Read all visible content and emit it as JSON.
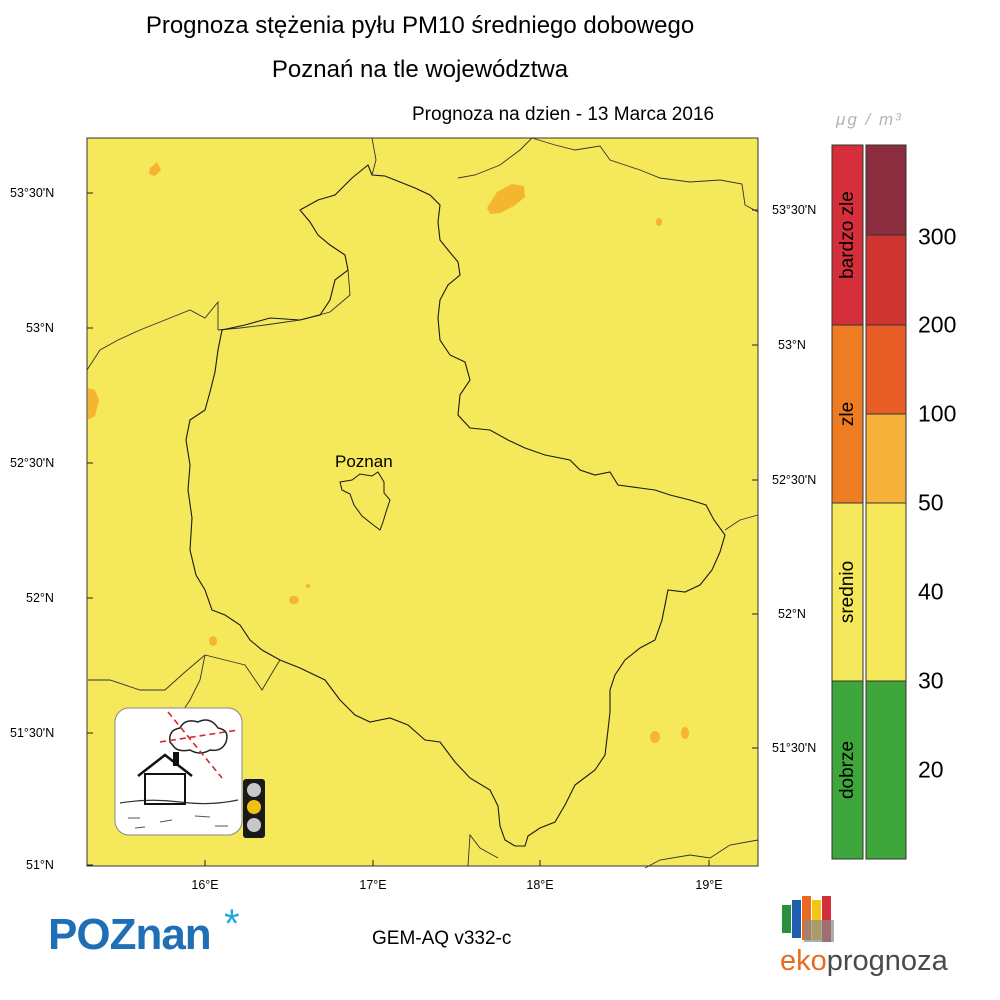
{
  "title_line1": "Prognoza stężenia pyłu PM10 średniego dobowego",
  "title_line2": "Poznań na tle województwa",
  "forecast_date": "Prognoza na dzien -  13 Marca 2016",
  "city_label": "Poznan",
  "lat_labels_left": [
    "53°30'N",
    "53°N",
    "52°30'N",
    "52°N",
    "51°30'N",
    "51°N"
  ],
  "lat_labels_right": [
    "53°30'N",
    "53°N",
    "52°30'N",
    "52°N",
    "51°30'N"
  ],
  "lon_labels": [
    "16°E",
    "17°E",
    "18°E",
    "19°E"
  ],
  "unit": "μg / m³",
  "categories": [
    "bardzo zle",
    "zle",
    "srednio",
    "dobrze"
  ],
  "scale_values": [
    "300",
    "200",
    "100",
    "50",
    "40",
    "30",
    "20"
  ],
  "model": "GEM-AQ v332-c",
  "logo_poznan": "POZnan",
  "logo_poznan_mark": "*",
  "logo_eko_prefix": "eko",
  "logo_eko_suffix": "prognoza",
  "colors": {
    "map_fill": "#f5e85a",
    "hotspot": "#f6b52f",
    "bardzo_zle": "#d62f3c",
    "zle": "#ee7c23",
    "srednio": "#f5e85a",
    "dobrze": "#3ea63a",
    "level_300": "#8b2c3f",
    "level_200": "#cf3530",
    "level_100": "#e85c25",
    "level_50": "#f6b23b"
  },
  "traffic_light_state": "yellow"
}
